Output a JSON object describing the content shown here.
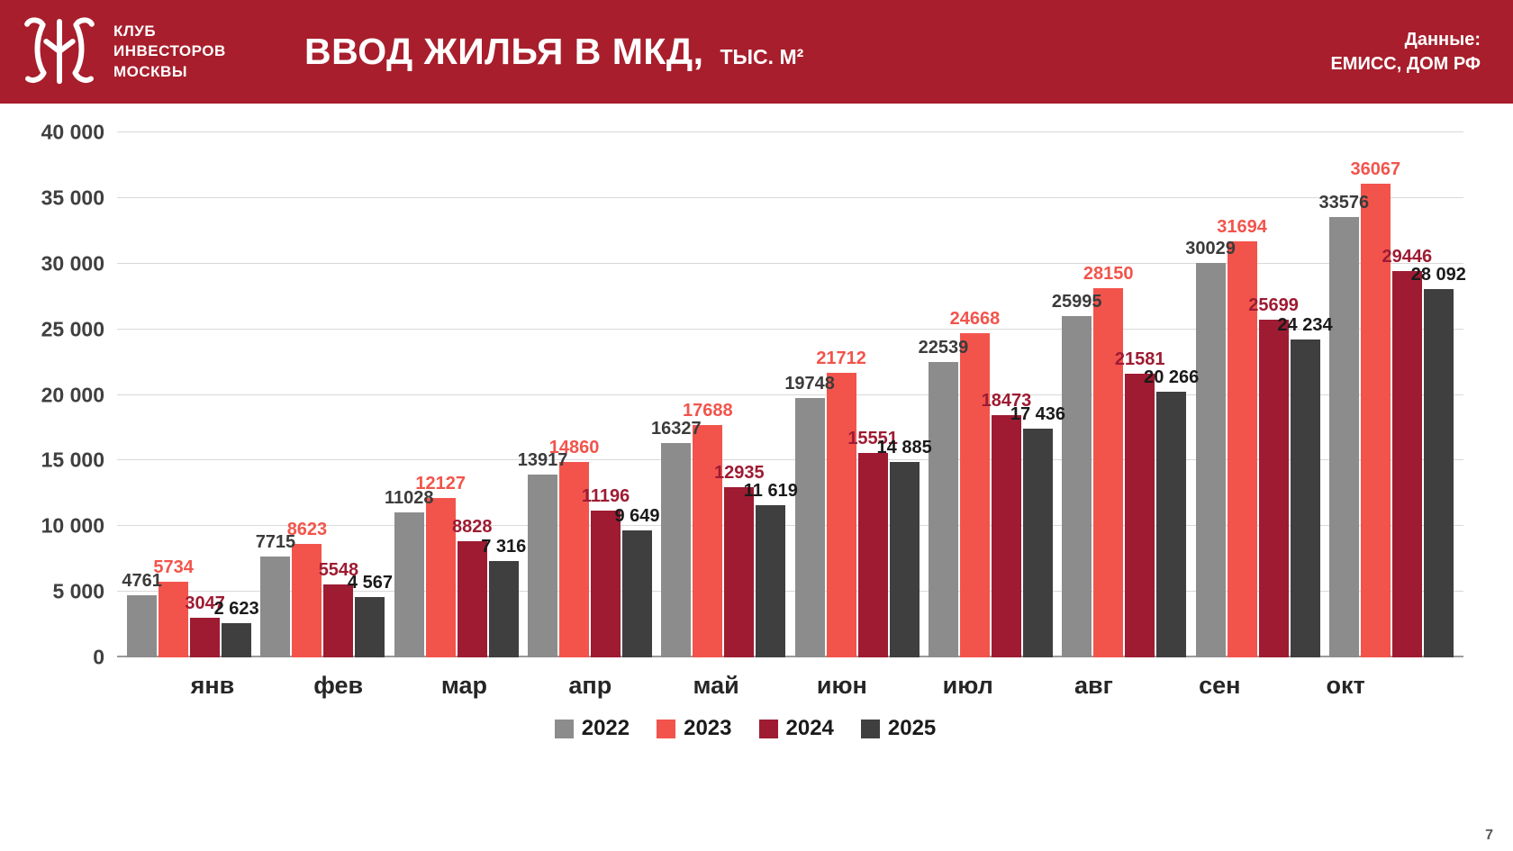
{
  "page_number": "7",
  "header": {
    "background": "#a81e2c",
    "logo_lines": [
      "КЛУБ",
      "ИНВЕСТОРОВ",
      "МОСКВЫ"
    ],
    "title": "ВВОД ЖИЛЬЯ В МКД,",
    "subtitle": "ТЫС. М²",
    "source_label": "Данные:",
    "source_value": "ЕМИСС, ДОМ РФ"
  },
  "chart_data": {
    "type": "bar",
    "title": "ВВОД ЖИЛЬЯ В МКД, ТЫС. М²",
    "xlabel": "",
    "ylabel": "",
    "grid": true,
    "legend_position": "bottom",
    "ylim": [
      0,
      40000
    ],
    "yticks": [
      {
        "value": 0,
        "label": "0"
      },
      {
        "value": 5000,
        "label": "5 000"
      },
      {
        "value": 10000,
        "label": "10 000"
      },
      {
        "value": 15000,
        "label": "15 000"
      },
      {
        "value": 20000,
        "label": "20 000"
      },
      {
        "value": 25000,
        "label": "25 000"
      },
      {
        "value": 30000,
        "label": "30 000"
      },
      {
        "value": 35000,
        "label": "35 000"
      },
      {
        "value": 40000,
        "label": "40 000"
      }
    ],
    "categories": [
      "янв",
      "фев",
      "мар",
      "апр",
      "май",
      "июн",
      "июл",
      "авг",
      "сен",
      "окт"
    ],
    "series": [
      {
        "name": "2022",
        "color": "#8c8c8c",
        "label_color": "#3b3b3b",
        "values": [
          4761,
          7715,
          11028,
          13917,
          16327,
          19748,
          22539,
          25995,
          30029,
          33576
        ],
        "labels": [
          "4761",
          "7715",
          "11028",
          "13917",
          "16327",
          "19748",
          "22539",
          "25995",
          "30029",
          "33576"
        ]
      },
      {
        "name": "2023",
        "color": "#f2544c",
        "label_color": "#f2544c",
        "values": [
          5734,
          8623,
          12127,
          14860,
          17688,
          21712,
          24668,
          28150,
          31694,
          36067
        ],
        "labels": [
          "5734",
          "8623",
          "12127",
          "14860",
          "17688",
          "21712",
          "24668",
          "28150",
          "31694",
          "36067"
        ]
      },
      {
        "name": "2024",
        "color": "#9e1b32",
        "label_color": "#9e1b32",
        "values": [
          3047,
          5548,
          8828,
          11196,
          12935,
          15551,
          18473,
          21581,
          25699,
          29446
        ],
        "labels": [
          "3047",
          "5548",
          "8828",
          "11196",
          "12935",
          "15551",
          "18473",
          "21581",
          "25699",
          "29446"
        ]
      },
      {
        "name": "2025",
        "color": "#3f3f3f",
        "label_color": "#1a1a1a",
        "values": [
          2623,
          4567,
          7316,
          9649,
          11619,
          14885,
          17436,
          20266,
          24234,
          28092
        ],
        "labels": [
          "2 623",
          "4 567",
          "7 316",
          "9 649",
          "11 619",
          "14 885",
          "17 436",
          "20 266",
          "24 234",
          "28 092"
        ]
      }
    ]
  }
}
